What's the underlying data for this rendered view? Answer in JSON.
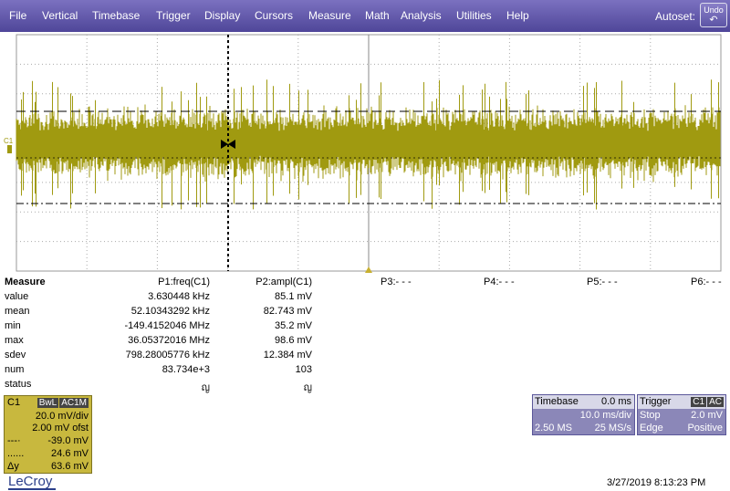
{
  "menu": [
    "File",
    "Vertical",
    "Timebase",
    "Trigger",
    "Display",
    "Cursors",
    "Measure",
    "Math",
    "Analysis",
    "Utilities",
    "Help"
  ],
  "autoset_label": "Autoset:",
  "undo_label": "Undo",
  "undo_icon": "undo-arrow-icon",
  "channel_marker": "C1",
  "channel_color": "#a09a10",
  "measure": {
    "title": "Measure",
    "p1_header": "P1:freq(C1)",
    "p2_header": "P2:ampl(C1)",
    "p3": "P3:- - -",
    "p4": "P4:- - -",
    "p5": "P5:- - -",
    "p6": "P6:- - -",
    "rows": [
      {
        "label": "value",
        "p1": "3.630448 kHz",
        "p2": "85.1 mV"
      },
      {
        "label": "mean",
        "p1": "52.10343292 kHz",
        "p2": "82.743 mV"
      },
      {
        "label": "min",
        "p1": "-149.4152046 MHz",
        "p2": "35.2 mV"
      },
      {
        "label": "max",
        "p1": "36.05372016 MHz",
        "p2": "98.6 mV"
      },
      {
        "label": "sdev",
        "p1": "798.28005776 kHz",
        "p2": "12.384 mV"
      },
      {
        "label": "num",
        "p1": "83.734e+3",
        "p2": "103"
      },
      {
        "label": "status",
        "p1": "ญ",
        "p2": "ญ"
      }
    ]
  },
  "c1": {
    "name": "C1",
    "badge1": "BwL",
    "badge2": "AC1M",
    "vdiv": "20.0 mV/div",
    "offset": "2.00 mV ofst",
    "cursor1_label": "---·",
    "cursor1": "-39.0 mV",
    "cursor2_label": "......",
    "cursor2": "24.6 mV",
    "dy_label": "Δy",
    "dy": "63.6 mV"
  },
  "timebase": {
    "title": "Timebase",
    "delay": "0.0 ms",
    "tdiv": "10.0 ms/div",
    "samples": "2.50 MS",
    "rate": "25 MS/s"
  },
  "trigger": {
    "title": "Trigger",
    "badge1": "C1",
    "badge2": "AC",
    "mode": "Stop",
    "level": "2.0 mV",
    "type": "Edge",
    "slope": "Positive"
  },
  "logo": "LeCroy",
  "datetime": "3/27/2019 8:13:23 PM"
}
